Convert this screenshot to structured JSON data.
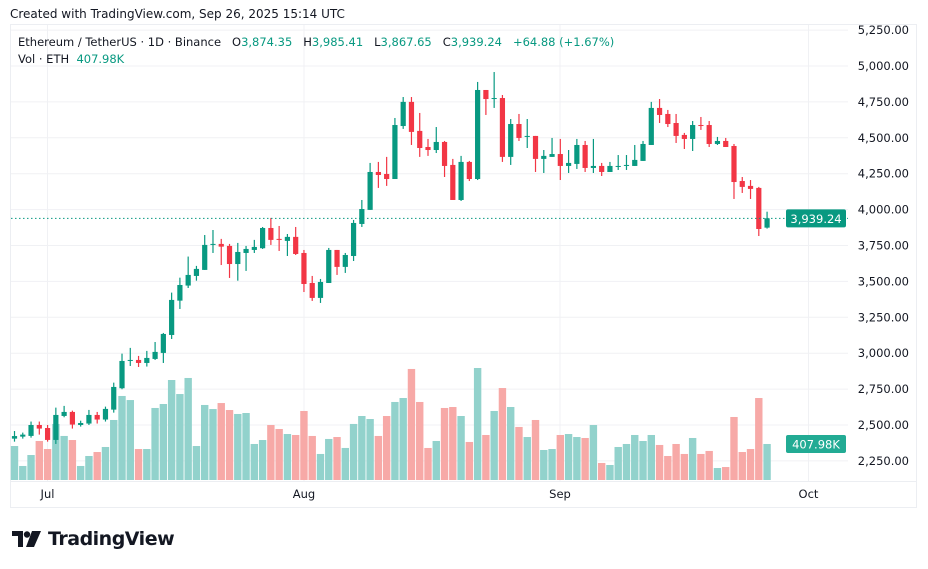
{
  "header": {
    "created": "Created with TradingView.com, Sep 26, 2025 15:14 UTC"
  },
  "legend": {
    "symbol": "Ethereum / TetherUS · 1D · Binance",
    "o_label": "O",
    "o": "3,874.35",
    "h_label": "H",
    "h": "3,985.41",
    "l_label": "L",
    "l": "3,867.65",
    "c_label": "C",
    "c": "3,939.24",
    "change": "+64.88 (+1.67%)",
    "vol_label": "Vol · ETH",
    "vol": "407.98K"
  },
  "last_price_label": "3,939.24",
  "last_volume_label": "407.98K",
  "logo": "TradingView",
  "colors": {
    "up": "#089981",
    "down": "#F23645",
    "vol_up": "#92D2CC",
    "vol_down": "#F7A9A7",
    "grid": "#F0F1F4"
  },
  "chart_data": {
    "type": "candlestick",
    "symbol": "Ethereum / TetherUS",
    "interval": "1D",
    "x_ticks": [
      "Jul",
      "Aug",
      "Sep",
      "Oct"
    ],
    "y_ticks": [
      "5,250.00",
      "5,000.00",
      "4,750.00",
      "4,500.00",
      "4,250.00",
      "4,000.00",
      "3,750.00",
      "3,500.00",
      "3,250.00",
      "3,000.00",
      "2,750.00",
      "2,500.00",
      "2,250.00"
    ],
    "ylim": [
      2150,
      5300
    ],
    "grid": true,
    "volume_unit": "K",
    "candles_ohlc": [
      [
        2405,
        2458,
        2384,
        2423
      ],
      [
        2419,
        2447,
        2405,
        2433
      ],
      [
        2424,
        2524,
        2412,
        2500
      ],
      [
        2500,
        2524,
        2433,
        2475
      ],
      [
        2479,
        2500,
        2384,
        2396
      ],
      [
        2396,
        2621,
        2368,
        2570
      ],
      [
        2563,
        2633,
        2554,
        2591
      ],
      [
        2591,
        2600,
        2475,
        2503
      ],
      [
        2500,
        2530,
        2489,
        2514
      ],
      [
        2510,
        2605,
        2500,
        2570
      ],
      [
        2570,
        2591,
        2510,
        2538
      ],
      [
        2538,
        2628,
        2524,
        2612
      ],
      [
        2607,
        2795,
        2586,
        2765
      ],
      [
        2756,
        2997,
        2749,
        2946
      ],
      [
        2948,
        3037,
        2911,
        2953
      ],
      [
        2953,
        2981,
        2904,
        2932
      ],
      [
        2932,
        3016,
        2907,
        2967
      ],
      [
        2960,
        3078,
        2953,
        3009
      ],
      [
        3002,
        3141,
        2932,
        3134
      ],
      [
        3127,
        3422,
        3099,
        3371
      ],
      [
        3366,
        3526,
        3308,
        3475
      ],
      [
        3471,
        3673,
        3454,
        3545
      ],
      [
        3538,
        3608,
        3505,
        3587
      ],
      [
        3580,
        3823,
        3580,
        3754
      ],
      [
        3756,
        3858,
        3698,
        3761
      ],
      [
        3761,
        3796,
        3614,
        3742
      ],
      [
        3747,
        3761,
        3524,
        3621
      ],
      [
        3621,
        3768,
        3505,
        3705
      ],
      [
        3698,
        3747,
        3573,
        3726
      ],
      [
        3719,
        3789,
        3698,
        3740
      ],
      [
        3731,
        3879,
        3726,
        3872
      ],
      [
        3872,
        3942,
        3754,
        3789
      ],
      [
        3796,
        3886,
        3712,
        3789
      ],
      [
        3782,
        3830,
        3677,
        3810
      ],
      [
        3810,
        3879,
        3684,
        3691
      ],
      [
        3698,
        3719,
        3426,
        3482
      ],
      [
        3489,
        3538,
        3364,
        3385
      ],
      [
        3385,
        3517,
        3350,
        3496
      ],
      [
        3489,
        3733,
        3489,
        3719
      ],
      [
        3719,
        3719,
        3545,
        3601
      ],
      [
        3601,
        3698,
        3559,
        3684
      ],
      [
        3677,
        3928,
        3642,
        3907
      ],
      [
        3900,
        4067,
        3879,
        4004
      ],
      [
        3998,
        4325,
        3998,
        4262
      ],
      [
        4262,
        4332,
        4151,
        4241
      ],
      [
        4248,
        4367,
        4165,
        4213
      ],
      [
        4213,
        4638,
        4213,
        4589
      ],
      [
        4582,
        4784,
        4562,
        4750
      ],
      [
        4750,
        4784,
        4450,
        4541
      ],
      [
        4548,
        4673,
        4367,
        4429
      ],
      [
        4436,
        4492,
        4374,
        4415
      ],
      [
        4415,
        4575,
        4394,
        4471
      ],
      [
        4471,
        4478,
        4227,
        4304
      ],
      [
        4311,
        4353,
        4067,
        4067
      ],
      [
        4067,
        4374,
        4060,
        4332
      ],
      [
        4332,
        4339,
        4199,
        4213
      ],
      [
        4213,
        4889,
        4206,
        4833
      ],
      [
        4833,
        4833,
        4659,
        4770
      ],
      [
        4773,
        4958,
        4708,
        4777
      ],
      [
        4777,
        4798,
        4332,
        4367
      ],
      [
        4367,
        4631,
        4311,
        4596
      ],
      [
        4596,
        4666,
        4478,
        4499
      ],
      [
        4508,
        4631,
        4429,
        4513
      ],
      [
        4513,
        4513,
        4262,
        4353
      ],
      [
        4353,
        4415,
        4255,
        4374
      ],
      [
        4367,
        4499,
        4367,
        4387
      ],
      [
        4387,
        4492,
        4206,
        4304
      ],
      [
        4304,
        4415,
        4255,
        4325
      ],
      [
        4318,
        4492,
        4283,
        4450
      ],
      [
        4450,
        4478,
        4262,
        4290
      ],
      [
        4290,
        4492,
        4255,
        4304
      ],
      [
        4304,
        4325,
        4234,
        4262
      ],
      [
        4262,
        4332,
        4262,
        4304
      ],
      [
        4299,
        4380,
        4276,
        4304
      ],
      [
        4306,
        4380,
        4276,
        4311
      ],
      [
        4304,
        4450,
        4304,
        4346
      ],
      [
        4339,
        4478,
        4339,
        4457
      ],
      [
        4450,
        4750,
        4450,
        4708
      ],
      [
        4708,
        4770,
        4603,
        4659
      ],
      [
        4666,
        4694,
        4575,
        4596
      ],
      [
        4603,
        4666,
        4464,
        4513
      ],
      [
        4520,
        4534,
        4422,
        4492
      ],
      [
        4492,
        4617,
        4408,
        4589
      ],
      [
        4589,
        4645,
        4555,
        4585
      ],
      [
        4589,
        4617,
        4436,
        4457
      ],
      [
        4457,
        4506,
        4450,
        4478
      ],
      [
        4478,
        4499,
        4436,
        4436
      ],
      [
        4443,
        4457,
        4074,
        4192
      ],
      [
        4199,
        4227,
        4116,
        4158
      ],
      [
        4165,
        4206,
        4074,
        4144
      ],
      [
        4151,
        4158,
        3816,
        3865
      ],
      [
        3874.35,
        3985.41,
        3867.65,
        3939.24
      ]
    ],
    "volumes_k": [
      385,
      159,
      283,
      442,
      351,
      635,
      499,
      453,
      159,
      272,
      317,
      374,
      680,
      952,
      906,
      351,
      351,
      816,
      861,
      1133,
      974,
      1156,
      385,
      850,
      804,
      872,
      793,
      748,
      759,
      408,
      453,
      623,
      578,
      521,
      510,
      782,
      499,
      295,
      465,
      487,
      363,
      635,
      725,
      691,
      499,
      725,
      884,
      929,
      1258,
      884,
      363,
      442,
      816,
      827,
      725,
      431,
      1269,
      510,
      782,
      1042,
      827,
      601,
      487,
      680,
      340,
      351,
      510,
      521,
      487,
      476,
      623,
      193,
      170,
      374,
      408,
      510,
      442,
      510,
      397,
      272,
      408,
      295,
      476,
      295,
      329,
      136,
      147,
      714,
      317,
      351,
      929,
      407.98
    ]
  }
}
